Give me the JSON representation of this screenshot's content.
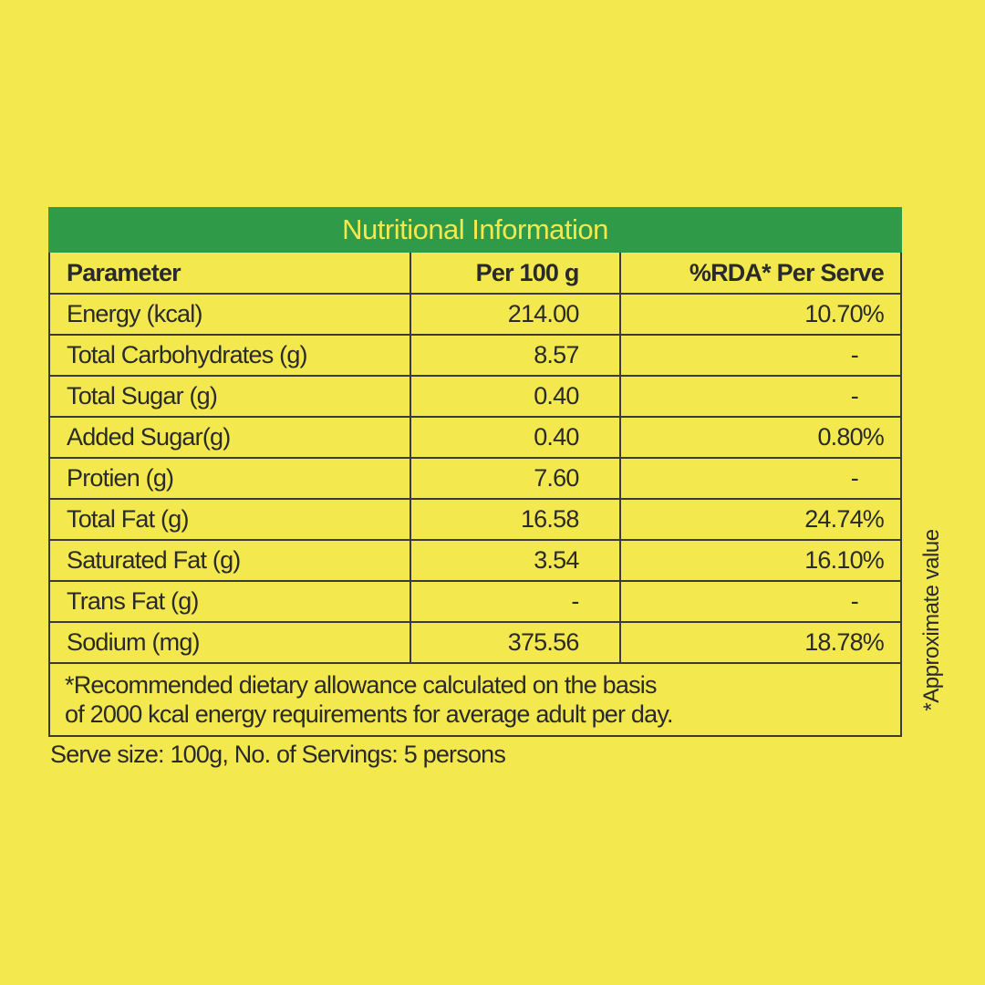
{
  "panel": {
    "title": "Nutritional Information",
    "colors": {
      "background": "#f3e94f",
      "header_bar": "#2f9a48",
      "header_text": "#f3e94f",
      "text": "#2a2a2a",
      "border": "#3a3a3a"
    }
  },
  "table": {
    "headers": [
      "Parameter",
      "Per 100 g",
      "%RDA* Per Serve"
    ],
    "rows": [
      {
        "parameter": "Energy (kcal)",
        "per_100g": "214.00",
        "rda": "10.70%"
      },
      {
        "parameter": "Total Carbohydrates (g)",
        "per_100g": "8.57",
        "rda": "-"
      },
      {
        "parameter": "Total Sugar (g)",
        "per_100g": "0.40",
        "rda": "-"
      },
      {
        "parameter": "Added Sugar(g)",
        "per_100g": "0.40",
        "rda": "0.80%"
      },
      {
        "parameter": "Protien (g)",
        "per_100g": "7.60",
        "rda": "-"
      },
      {
        "parameter": "Total Fat (g)",
        "per_100g": "16.58",
        "rda": "24.74%"
      },
      {
        "parameter": "Saturated Fat (g)",
        "per_100g": "3.54",
        "rda": "16.10%"
      },
      {
        "parameter": "Trans Fat (g)",
        "per_100g": "-",
        "rda": "-"
      },
      {
        "parameter": "Sodium (mg)",
        "per_100g": "375.56",
        "rda": "18.78%"
      }
    ],
    "footnote_line1": "*Recommended dietary allowance calculated on the basis",
    "footnote_line2": "of 2000 kcal energy requirements for average adult per day."
  },
  "serve_info": "Serve size: 100g, No. of Servings: 5 persons",
  "side_note": "*Approximate value"
}
